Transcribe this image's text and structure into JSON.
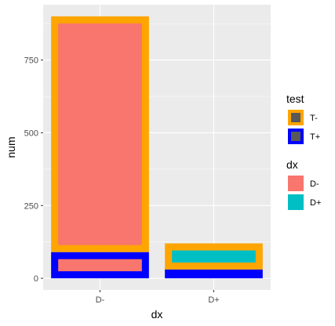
{
  "chart_data": {
    "type": "bar",
    "xlabel": "dx",
    "ylabel": "num",
    "categories": [
      "D-",
      "D+"
    ],
    "ylim": [
      -40,
      940
    ],
    "yticks": [
      0,
      250,
      500,
      750
    ],
    "bars": [
      {
        "dx": "D-",
        "test": "T+",
        "ymin": 0,
        "ymax": 90
      },
      {
        "dx": "D-",
        "test": "T-",
        "ymin": 90,
        "ymax": 900
      },
      {
        "dx": "D+",
        "test": "T+",
        "ymin": 0,
        "ymax": 30
      },
      {
        "dx": "D+",
        "test": "T-",
        "ymin": 30,
        "ymax": 120
      }
    ],
    "grid": true,
    "legend_position": "right",
    "legends": [
      {
        "title": "test",
        "kind": "outline",
        "items": [
          {
            "label": "T-",
            "color": "#FFA500"
          },
          {
            "label": "T+",
            "color": "#0000FF"
          }
        ]
      },
      {
        "title": "dx",
        "kind": "fill",
        "items": [
          {
            "label": "D-",
            "color": "#F8766D"
          },
          {
            "label": "D+",
            "color": "#00BFC4"
          }
        ]
      }
    ],
    "colors": {
      "panel": "#EBEBEB",
      "grid": "#FFFFFF",
      "legend_key_fill": "#595959"
    }
  }
}
